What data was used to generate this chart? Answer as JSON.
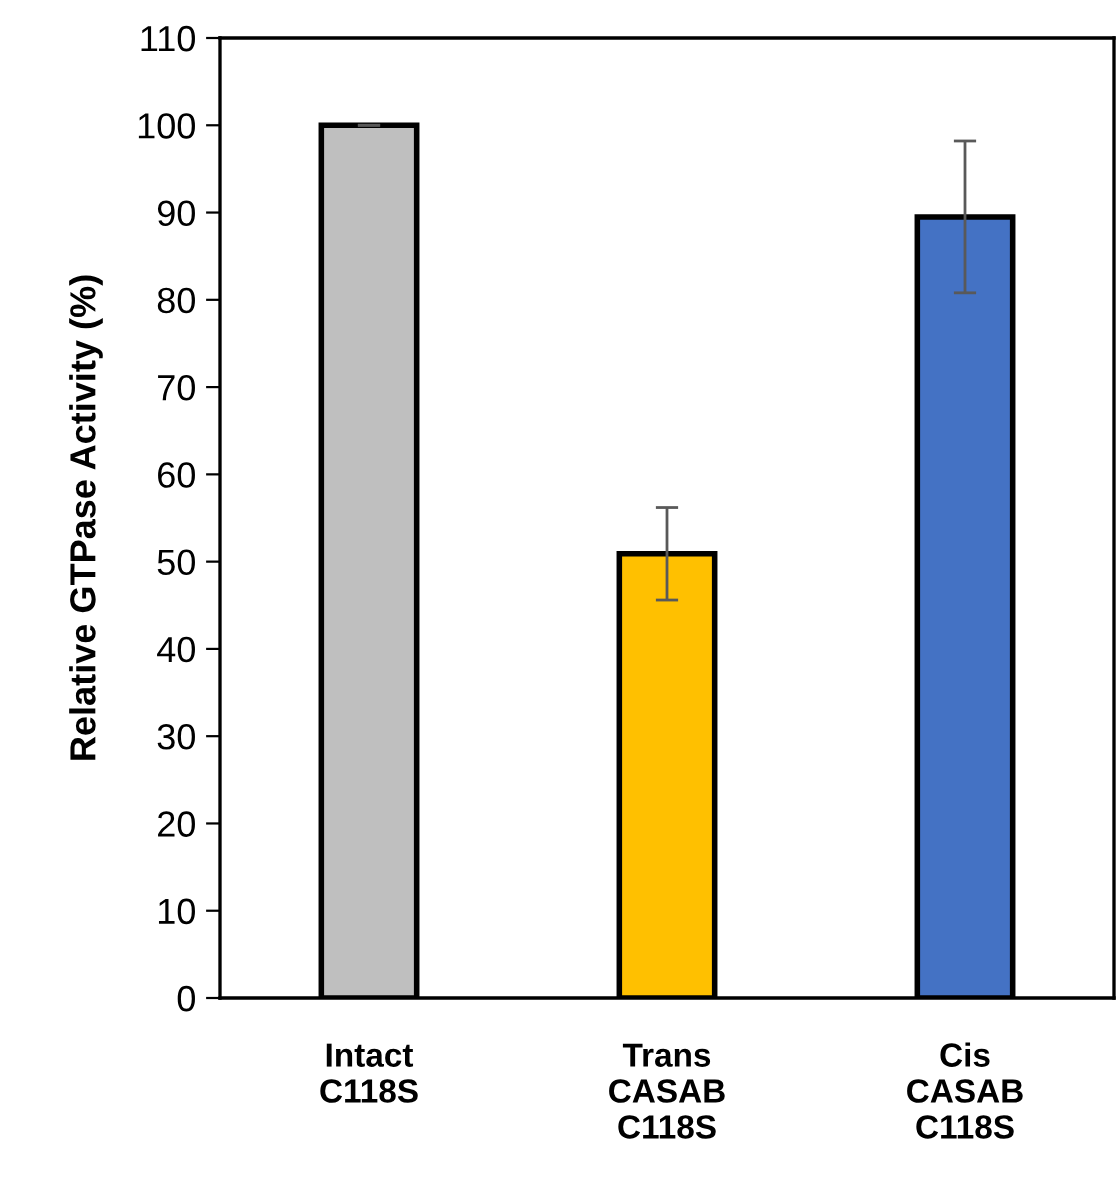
{
  "chart_data": {
    "type": "bar",
    "ylabel": "Relative GTPase Activity (%)",
    "categories": [
      "Intact\nC118S",
      "Trans\nCASAB\nC118S",
      "Cis\nCASAB\nC118S"
    ],
    "values": [
      100,
      50.9,
      89.5
    ],
    "errors": [
      0,
      5.3,
      8.7
    ],
    "colors": [
      "#bfbfbf",
      "#ffc000",
      "#4472c4"
    ],
    "ylim": [
      0,
      110
    ],
    "yticks": [
      0,
      10,
      20,
      30,
      40,
      50,
      60,
      70,
      80,
      90,
      100,
      110
    ],
    "grid": false
  }
}
